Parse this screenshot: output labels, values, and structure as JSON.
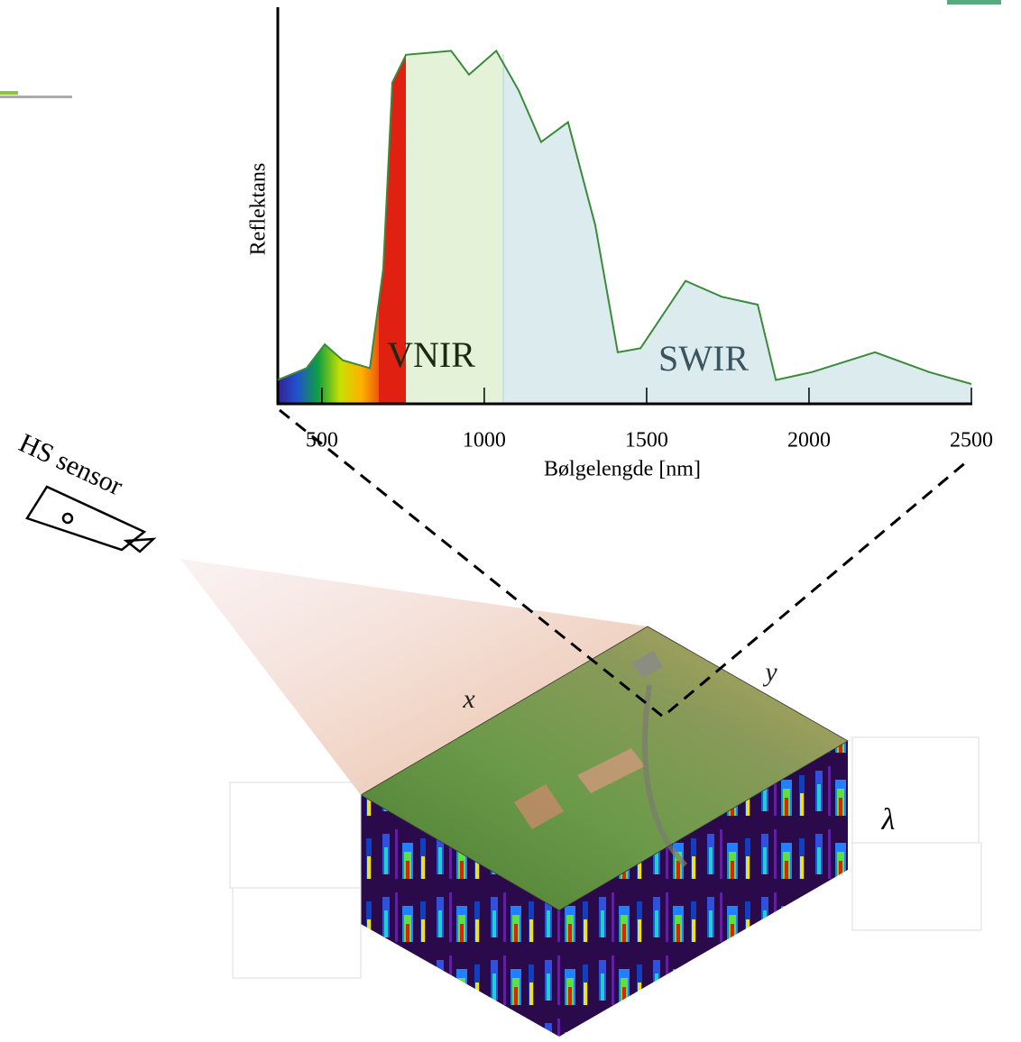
{
  "chart_data": {
    "type": "area",
    "y_label": "Reflektans",
    "x_label": "Bølgelengde [nm]",
    "annotations": [
      "VNIR",
      "SWIR"
    ],
    "x": [
      364,
      453,
      509,
      564,
      648,
      689,
      717,
      759,
      898,
      953,
      1037,
      1106,
      1175,
      1258,
      1342,
      1411,
      1481,
      1620,
      1731,
      1842,
      1898,
      2009,
      2203,
      2370,
      2500
    ],
    "values": [
      0.06,
      0.09,
      0.15,
      0.11,
      0.09,
      0.34,
      0.81,
      0.88,
      0.89,
      0.83,
      0.89,
      0.79,
      0.66,
      0.71,
      0.45,
      0.13,
      0.14,
      0.31,
      0.27,
      0.25,
      0.06,
      0.08,
      0.13,
      0.08,
      0.05
    ],
    "color": "#3a8a3a",
    "xlim": [
      356,
      2500
    ],
    "ylim": [
      0,
      1
    ],
    "xticks": [
      500,
      1000,
      1500,
      2000,
      2500
    ]
  },
  "diagram": {
    "sensor_label": "HS sensor",
    "x_axis": "x",
    "y_axis": "y",
    "spectral_axis": "λ"
  }
}
